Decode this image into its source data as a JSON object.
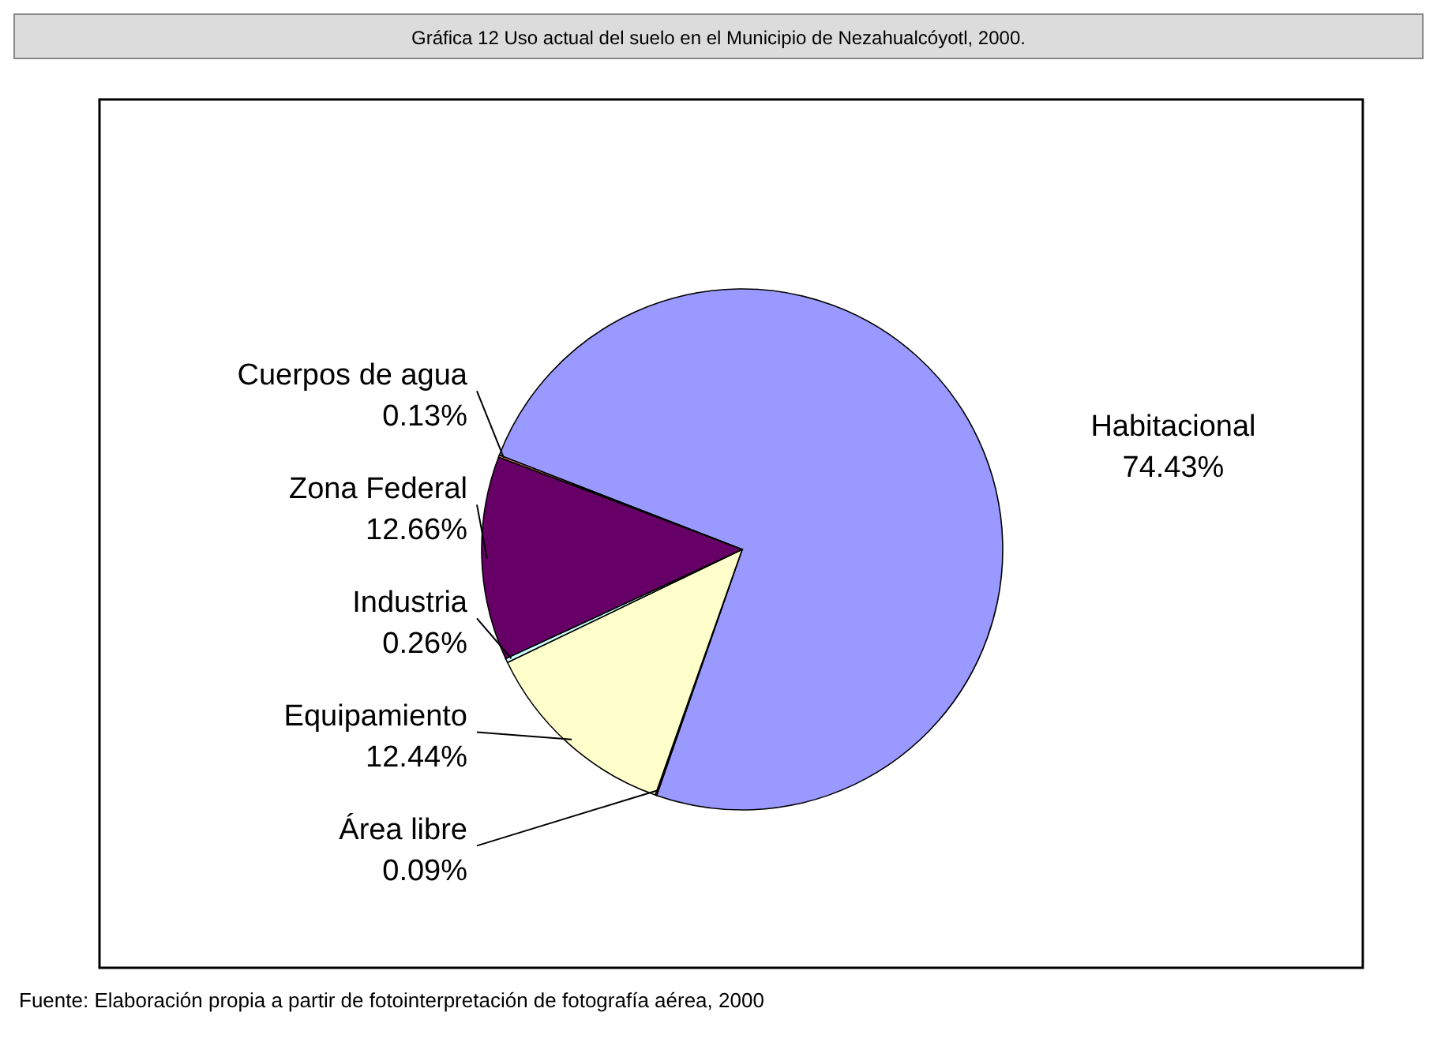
{
  "chart_data": {
    "type": "pie",
    "title": "Gráfica 12 Uso actual del suelo en el Municipio de Nezahualcóyotl, 2000.",
    "categories": [
      "Habitacional",
      "Área libre",
      "Equipamiento",
      "Industria",
      "Zona Federal",
      "Cuerpos de agua"
    ],
    "values": [
      74.43,
      0.09,
      12.44,
      0.26,
      12.66,
      0.13
    ],
    "colors": [
      "#9999ff",
      "#993366",
      "#ffffcc",
      "#ccffff",
      "#660066",
      "#ff8080"
    ],
    "value_labels": [
      "74.43%",
      "0.09%",
      "12.44%",
      "0.26%",
      "12.66%",
      "0.13%"
    ],
    "annotations": [
      "Fuente: Elaboración propia a partir de fotointerpretación de fotografía aérea, 2000"
    ]
  }
}
